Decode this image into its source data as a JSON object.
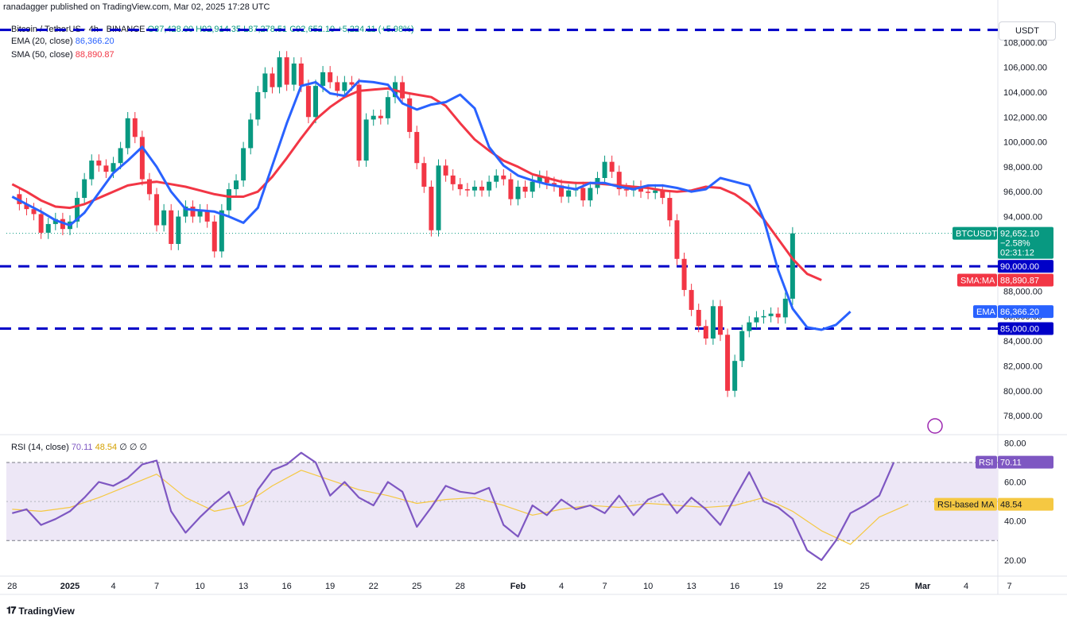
{
  "header": {
    "published": "ranadagger published on TradingView.com, Mar 02, 2025 17:28 UTC",
    "symbol": "Bitcoin / TetherUS · 4h · BINANCE",
    "ohlc": {
      "o": "O87,428.00",
      "h": "H92,914.35",
      "l": "L87,278.51",
      "c": "C92,652.10",
      "chg": "+5,224.11 (+5.98%)"
    },
    "ema_label": "EMA (20, close)",
    "ema_value": "86,366.20",
    "sma_label": "SMA (50, close)",
    "sma_value": "88,890.87",
    "rsi_label": "RSI (14, close)",
    "rsi_value": "70.11",
    "rsi_ma_value": "48.54",
    "rsi_extra": "∅  ∅  ∅"
  },
  "unit": "USDT",
  "brand": "TradingView",
  "colors": {
    "up": "#089981",
    "down": "#f23645",
    "ema": "#2962ff",
    "sma": "#f23645",
    "rsi": "#7e57c2",
    "rsi_ma": "#f5c842",
    "level": "#0000c8",
    "rsi_band": "#ede7f6"
  },
  "chart_data": [
    {
      "type": "line",
      "title": "Bitcoin / TetherUS · 4h · BINANCE",
      "y_unit": "USDT",
      "ylim": [
        76600,
        110000
      ],
      "y_ticks": [
        "108,000.00",
        "106,000.00",
        "104,000.00",
        "102,000.00",
        "100,000.00",
        "98,000.00",
        "96,000.00",
        "94,000.00",
        "92,000.00",
        "90,000.00",
        "88,000.00",
        "86,000.00",
        "84,000.00",
        "82,000.00",
        "80,000.00",
        "78,000.00"
      ],
      "x_ticks": [
        {
          "label": "28",
          "x": 0
        },
        {
          "label": "2025",
          "x": 4
        },
        {
          "label": "4",
          "x": 7
        },
        {
          "label": "7",
          "x": 10
        },
        {
          "label": "10",
          "x": 13
        },
        {
          "label": "13",
          "x": 16
        },
        {
          "label": "16",
          "x": 19
        },
        {
          "label": "19",
          "x": 22
        },
        {
          "label": "22",
          "x": 25
        },
        {
          "label": "25",
          "x": 28
        },
        {
          "label": "28",
          "x": 31
        },
        {
          "label": "Feb",
          "x": 35
        },
        {
          "label": "4",
          "x": 38
        },
        {
          "label": "7",
          "x": 41
        },
        {
          "label": "10",
          "x": 44
        },
        {
          "label": "13",
          "x": 47
        },
        {
          "label": "16",
          "x": 50
        },
        {
          "label": "19",
          "x": 53
        },
        {
          "label": "22",
          "x": 56
        },
        {
          "label": "25",
          "x": 59
        },
        {
          "label": "Mar",
          "x": 63
        },
        {
          "label": "4",
          "x": 66
        },
        {
          "label": "7",
          "x": 69
        }
      ],
      "xlim": [
        -0.4,
        68.2
      ],
      "series": [
        {
          "name": "BTCUSDT",
          "x": [
            0,
            0.5,
            1,
            1.5,
            2,
            2.5,
            3,
            3.5,
            4,
            4.5,
            5,
            5.5,
            6,
            6.5,
            7,
            7.5,
            8,
            8.5,
            9,
            9.5,
            10,
            10.5,
            11,
            11.5,
            12,
            12.5,
            13,
            13.5,
            14,
            14.5,
            15,
            15.5,
            16,
            16.5,
            17,
            17.5,
            18,
            18.5,
            19,
            19.5,
            20,
            20.5,
            21,
            21.5,
            22,
            22.5,
            23,
            23.5,
            24,
            24.5,
            25,
            25.5,
            26,
            26.5,
            27,
            27.5,
            28,
            28.5,
            29,
            29.5,
            30,
            30.5,
            31,
            31.5,
            32,
            32.5,
            33,
            33.5,
            34,
            34.5,
            35,
            35.5,
            36,
            36.5,
            37,
            37.5,
            38,
            38.5,
            39,
            39.5,
            40,
            40.5,
            41,
            41.5,
            42,
            42.5,
            43,
            43.5,
            44,
            44.5,
            45,
            45.5,
            46,
            46.5,
            47,
            47.5,
            48,
            48.5,
            49,
            49.5,
            50,
            50.5,
            51,
            51.5,
            52,
            52.5,
            53,
            53.5,
            54,
            54.5,
            55,
            55.5,
            56,
            56.5,
            57,
            57.5,
            58,
            58.5,
            59,
            59.5,
            60,
            60.5,
            61,
            61.5,
            62,
            62.5,
            63,
            63.5,
            64,
            64.5
          ],
          "values": [
            95800,
            95000,
            94600,
            94200,
            92700,
            93400,
            93800,
            93000,
            93600,
            95500,
            97000,
            98500,
            98100,
            97600,
            98300,
            99500,
            101900,
            100400,
            97000,
            95800,
            93300,
            94500,
            91800,
            94000,
            94800,
            94000,
            94500,
            93600,
            91200,
            94500,
            96200,
            96900,
            99500,
            101800,
            104000,
            105500,
            104400,
            106800,
            104600,
            106300,
            104500,
            102000,
            104500,
            105600,
            104800,
            104100,
            104800,
            104600,
            98500,
            101800,
            102100,
            101900,
            103600,
            104800,
            103500,
            100800,
            98300,
            96400,
            92900,
            98100,
            97300,
            96600,
            96200,
            96100,
            96400,
            96100,
            96800,
            97300,
            97000,
            95400,
            96400,
            96000,
            96800,
            97200,
            96700,
            96500,
            95600,
            96100,
            96300,
            95300,
            96300,
            97100,
            98400,
            97600,
            96200,
            96100,
            96400,
            96000,
            95900,
            96100,
            95500,
            93700,
            90600,
            88100,
            86500,
            85200,
            84200,
            86800,
            84500,
            80000,
            82400,
            84800,
            85500,
            85900,
            86000,
            86200,
            85900,
            87400,
            92650,
            92650,
            92650,
            92650,
            92650,
            92650,
            92650,
            92650,
            92650,
            92650,
            92650,
            92650,
            92650,
            92650,
            92650,
            92650,
            92650,
            92650,
            92650,
            92650,
            92650,
            92650
          ]
        },
        {
          "name": "EMA (20, close)",
          "x": [
            0,
            1,
            2,
            3,
            4,
            5,
            6,
            7,
            8,
            9,
            10,
            11,
            12,
            13,
            14,
            15,
            16,
            17,
            18,
            19,
            20,
            21,
            22,
            23,
            24,
            25,
            26,
            27,
            28,
            29,
            30,
            31,
            32,
            33,
            34,
            35,
            36,
            37,
            38,
            39,
            40,
            41,
            42,
            43,
            44,
            45,
            46,
            47,
            48,
            49,
            50,
            51,
            52,
            53,
            54,
            55,
            56,
            57,
            58,
            59,
            60,
            61,
            62,
            63,
            64,
            65
          ],
          "values": [
            95600,
            95000,
            94400,
            93700,
            93300,
            94300,
            95900,
            97500,
            98500,
            99600,
            98000,
            96000,
            94600,
            94500,
            94400,
            94000,
            93500,
            94700,
            98100,
            101500,
            104500,
            104800,
            103900,
            103700,
            104900,
            104800,
            104600,
            103100,
            102600,
            103000,
            103200,
            103800,
            102700,
            99600,
            98100,
            97300,
            96900,
            96600,
            96400,
            96200,
            96700,
            96700,
            96400,
            96200,
            96500,
            96500,
            96300,
            96000,
            96200,
            97100,
            96800,
            96500,
            93800,
            89700,
            86600,
            85100,
            84900,
            85300,
            86366,
            86366,
            86366,
            86366,
            86366,
            86366,
            86366,
            86366
          ]
        },
        {
          "name": "SMA (50, close)",
          "x": [
            0,
            1,
            2,
            3,
            4,
            5,
            6,
            7,
            8,
            9,
            10,
            11,
            12,
            13,
            14,
            15,
            16,
            17,
            18,
            19,
            20,
            21,
            22,
            23,
            24,
            25,
            26,
            27,
            28,
            29,
            30,
            31,
            32,
            33,
            34,
            35,
            36,
            37,
            38,
            39,
            40,
            41,
            42,
            43,
            44,
            45,
            46,
            47,
            48,
            49,
            50,
            51,
            52,
            53,
            54,
            55,
            56,
            57,
            58,
            59,
            60,
            61,
            62,
            63,
            64,
            65
          ],
          "values": [
            96600,
            96000,
            95300,
            94800,
            94700,
            95000,
            95500,
            96000,
            96500,
            96700,
            96800,
            96600,
            96400,
            96100,
            95800,
            95600,
            95600,
            96000,
            97200,
            98700,
            100300,
            101800,
            102800,
            103600,
            104100,
            104200,
            104300,
            104000,
            103800,
            103600,
            102900,
            101500,
            100200,
            99300,
            98500,
            98000,
            97400,
            97100,
            96800,
            96700,
            96700,
            96600,
            96500,
            96400,
            96300,
            96100,
            96000,
            96100,
            96400,
            96300,
            95800,
            95000,
            93800,
            92200,
            90600,
            89400,
            88891,
            88891,
            88891,
            88891,
            88891,
            88891,
            88891,
            88891,
            88891,
            88891
          ]
        }
      ],
      "horizontal_levels": [
        109000,
        90000,
        85000
      ],
      "last_price_labels": [
        {
          "name": "BTCUSDT",
          "price": "92,652.10",
          "change": "−2.58%",
          "timer": "02:31:12"
        },
        {
          "name": "90,000.00"
        },
        {
          "name": "SMA:MA",
          "price": "88,890.87"
        },
        {
          "name": "EMA",
          "price": "86,366.20"
        },
        {
          "name": "85,000.00"
        }
      ]
    },
    {
      "type": "line",
      "title": "RSI (14, close)",
      "ylim": [
        13,
        83
      ],
      "y_ticks": [
        "80.00",
        "60.00",
        "40.00",
        "20.00"
      ],
      "bands": [
        70,
        30
      ],
      "series": [
        {
          "name": "RSI",
          "x": [
            0,
            1,
            2,
            3,
            4,
            5,
            6,
            7,
            8,
            9,
            10,
            11,
            12,
            13,
            14,
            15,
            16,
            17,
            18,
            19,
            20,
            21,
            22,
            23,
            24,
            25,
            26,
            27,
            28,
            29,
            30,
            31,
            32,
            33,
            34,
            35,
            36,
            37,
            38,
            39,
            40,
            41,
            42,
            43,
            44,
            45,
            46,
            47,
            48,
            49,
            50,
            51,
            52,
            53,
            54,
            55,
            56,
            57,
            58,
            59,
            60,
            61,
            62,
            63,
            64
          ],
          "values": [
            44,
            46,
            38,
            41,
            45,
            52,
            60,
            58,
            62,
            69,
            71,
            45,
            34,
            42,
            49,
            55,
            38,
            56,
            66,
            69,
            75,
            70,
            53,
            60,
            52,
            48,
            60,
            55,
            37,
            47,
            58,
            55,
            54,
            57,
            38,
            32,
            48,
            43,
            51,
            46,
            48,
            44,
            53,
            43,
            51,
            54,
            44,
            52,
            46,
            38,
            52,
            65,
            50,
            47,
            41,
            25,
            20,
            30,
            44,
            48,
            53,
            70,
            70,
            70,
            70
          ]
        },
        {
          "name": "RSI-based MA",
          "x": [
            0,
            2,
            4,
            6,
            8,
            10,
            12,
            14,
            16,
            18,
            20,
            22,
            24,
            26,
            28,
            30,
            32,
            34,
            36,
            38,
            40,
            42,
            44,
            46,
            48,
            50,
            52,
            54,
            56,
            58,
            60,
            62,
            64
          ],
          "values": [
            46,
            45,
            47,
            52,
            58,
            64,
            52,
            45,
            48,
            58,
            66,
            61,
            56,
            53,
            49,
            51,
            52,
            48,
            43,
            46,
            48,
            47,
            49,
            48,
            47,
            48,
            52,
            45,
            35,
            28,
            42,
            48.54,
            48.54
          ]
        }
      ]
    }
  ]
}
